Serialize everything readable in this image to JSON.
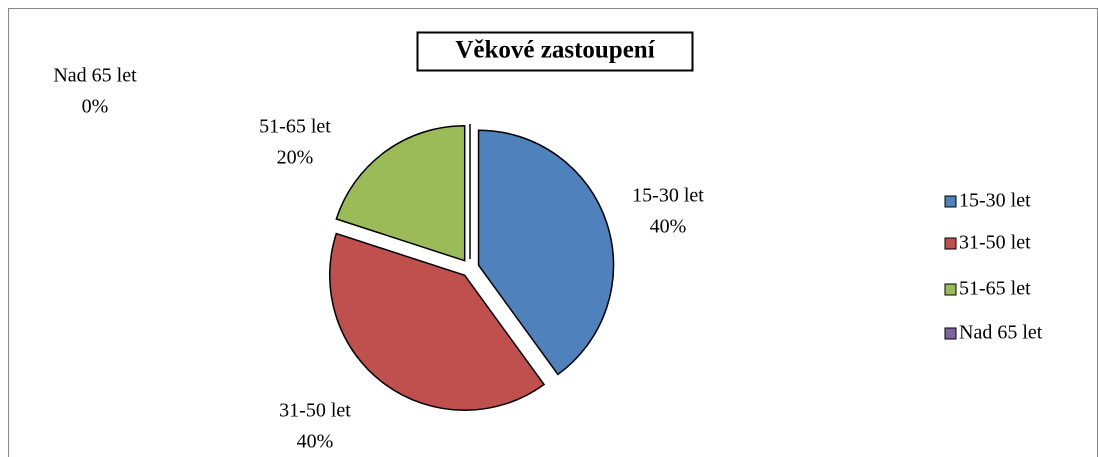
{
  "chart_data": {
    "type": "pie",
    "title": "Věkové zastoupení",
    "categories": [
      "15-30 let",
      "31-50 let",
      "51-65 let",
      "Nad 65 let"
    ],
    "values": [
      40,
      40,
      20,
      0
    ],
    "value_labels": [
      "40%",
      "40%",
      "20%",
      "0%"
    ],
    "colors": [
      "#4f81bd",
      "#c0504d",
      "#9bbb59",
      "#8064a2"
    ],
    "legend": "right"
  }
}
